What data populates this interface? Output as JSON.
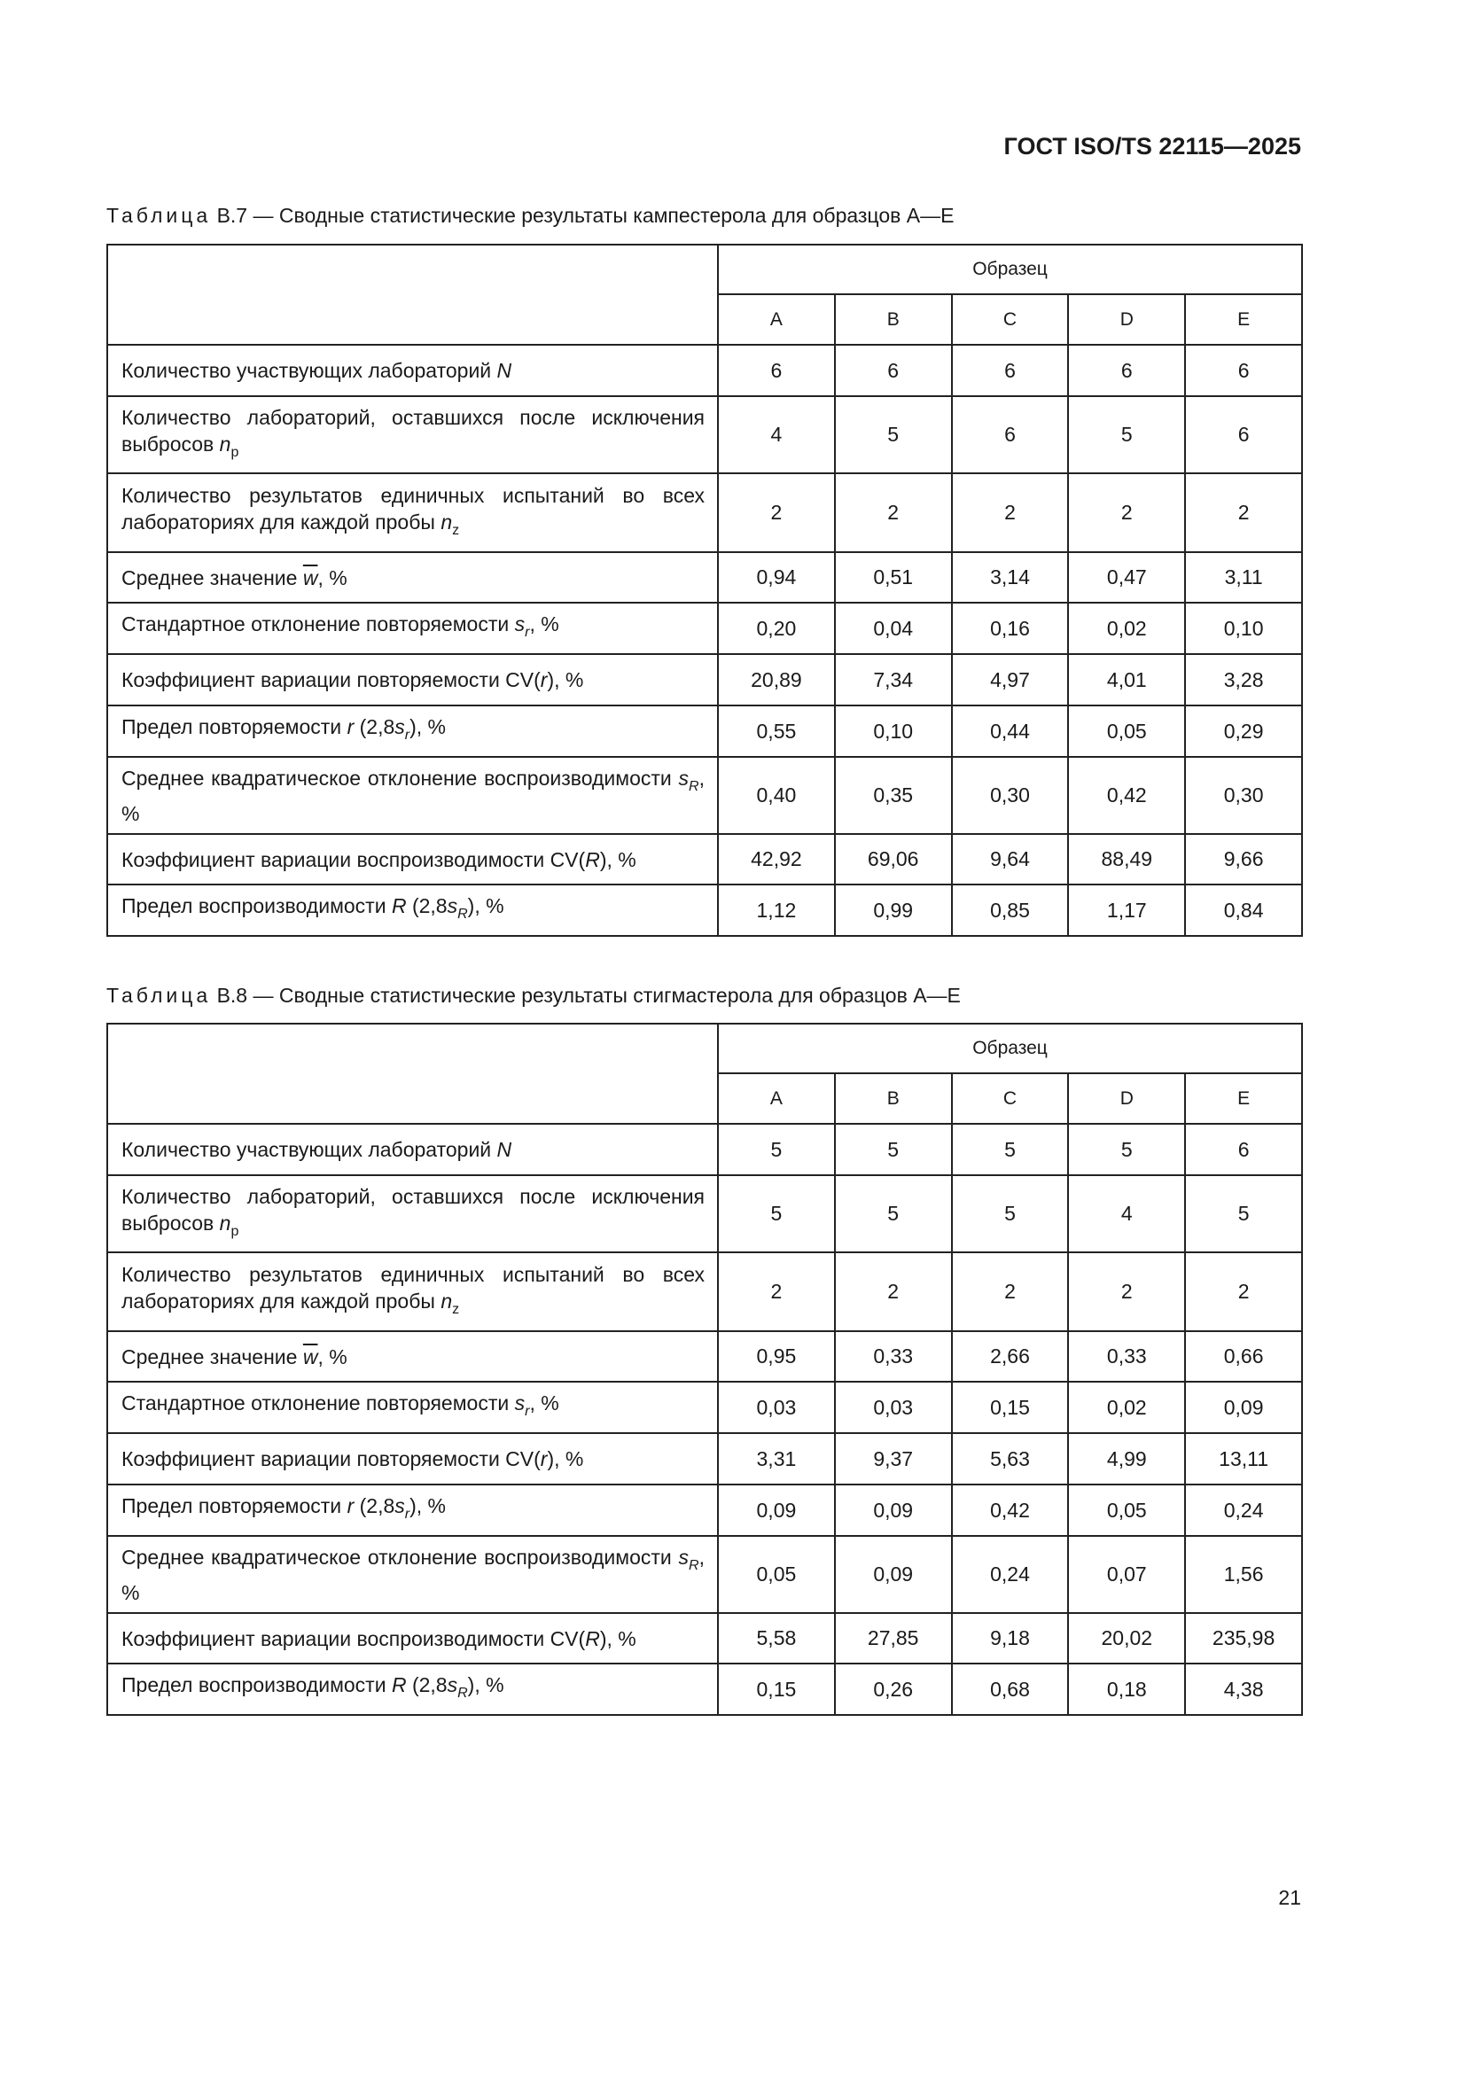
{
  "header": {
    "doc_id": "ГОСТ ISO/TS 22115—2025"
  },
  "tables": [
    {
      "caption_lead": "Таблица",
      "caption_text": " B.7 — Сводные статистические результаты кампестерола для образцов A—E",
      "group_header": "Образец",
      "columns": [
        "A",
        "B",
        "C",
        "D",
        "E"
      ],
      "rows": [
        {
          "label": [
            {
              "t": "Количество участвующих лабораторий "
            },
            {
              "t": "N",
              "s": "i"
            }
          ],
          "values": [
            "6",
            "6",
            "6",
            "6",
            "6"
          ]
        },
        {
          "label": [
            {
              "t": "Количество лабораторий, оставшихся после исключе­ния выбросов "
            },
            {
              "t": "n",
              "s": "i"
            },
            {
              "t": "p",
              "s": "sub"
            }
          ],
          "values": [
            "4",
            "5",
            "6",
            "5",
            "6"
          ]
        },
        {
          "label": [
            {
              "t": "Количество результатов единичных испытаний во всех лабораториях для каждой пробы "
            },
            {
              "t": "n",
              "s": "i"
            },
            {
              "t": "z",
              "s": "sub"
            }
          ],
          "values": [
            "2",
            "2",
            "2",
            "2",
            "2"
          ]
        },
        {
          "label": [
            {
              "t": "Среднее значение "
            },
            {
              "t": "w",
              "s": "over"
            },
            {
              "t": ", %"
            }
          ],
          "values": [
            "0,94",
            "0,51",
            "3,14",
            "0,47",
            "3,11"
          ]
        },
        {
          "label": [
            {
              "t": "Стандартное отклонение повторяемости "
            },
            {
              "t": "s",
              "s": "i"
            },
            {
              "t": "r",
              "s": "isub"
            },
            {
              "t": ", %"
            }
          ],
          "values": [
            "0,20",
            "0,04",
            "0,16",
            "0,02",
            "0,10"
          ]
        },
        {
          "label": [
            {
              "t": "Коэффициент вариации повторяемости CV("
            },
            {
              "t": "r",
              "s": "i"
            },
            {
              "t": "), %"
            }
          ],
          "values": [
            "20,89",
            "7,34",
            "4,97",
            "4,01",
            "3,28"
          ]
        },
        {
          "label": [
            {
              "t": "Предел повторяемости "
            },
            {
              "t": "r",
              "s": "i"
            },
            {
              "t": " (2,8"
            },
            {
              "t": "s",
              "s": "i"
            },
            {
              "t": "r",
              "s": "isub"
            },
            {
              "t": "), %"
            }
          ],
          "values": [
            "0,55",
            "0,10",
            "0,44",
            "0,05",
            "0,29"
          ]
        },
        {
          "label": [
            {
              "t": "Среднее квадратическое отклонение воспроизводи­мости "
            },
            {
              "t": "s",
              "s": "i"
            },
            {
              "t": "R",
              "s": "isub"
            },
            {
              "t": ", %"
            }
          ],
          "values": [
            "0,40",
            "0,35",
            "0,30",
            "0,42",
            "0,30"
          ]
        },
        {
          "label": [
            {
              "t": "Коэффициент вариации воспроизводимости CV("
            },
            {
              "t": "R",
              "s": "i"
            },
            {
              "t": "), %"
            }
          ],
          "values": [
            "42,92",
            "69,06",
            "9,64",
            "88,49",
            "9,66"
          ]
        },
        {
          "label": [
            {
              "t": "Предел воспроизводимости "
            },
            {
              "t": "R",
              "s": "i"
            },
            {
              "t": " (2,8"
            },
            {
              "t": "s",
              "s": "i"
            },
            {
              "t": "R",
              "s": "isub"
            },
            {
              "t": "), %"
            }
          ],
          "values": [
            "1,12",
            "0,99",
            "0,85",
            "1,17",
            "0,84"
          ]
        }
      ]
    },
    {
      "caption_lead": "Таблица",
      "caption_text": " B.8 — Сводные статистические результаты стигмастерола для образцов A—E",
      "group_header": "Образец",
      "columns": [
        "A",
        "B",
        "C",
        "D",
        "E"
      ],
      "rows": [
        {
          "label": [
            {
              "t": "Количество участвующих лабораторий "
            },
            {
              "t": "N",
              "s": "i"
            }
          ],
          "values": [
            "5",
            "5",
            "5",
            "5",
            "6"
          ]
        },
        {
          "label": [
            {
              "t": "Количество лабораторий, оставшихся после исключе­ния выбросов "
            },
            {
              "t": "n",
              "s": "i"
            },
            {
              "t": "p",
              "s": "sub"
            }
          ],
          "values": [
            "5",
            "5",
            "5",
            "4",
            "5"
          ]
        },
        {
          "label": [
            {
              "t": "Количество результатов единичных испытаний во всех лабораториях для каждой пробы "
            },
            {
              "t": "n",
              "s": "i"
            },
            {
              "t": "z",
              "s": "sub"
            }
          ],
          "values": [
            "2",
            "2",
            "2",
            "2",
            "2"
          ]
        },
        {
          "label": [
            {
              "t": "Среднее значение "
            },
            {
              "t": "w",
              "s": "over"
            },
            {
              "t": ", %"
            }
          ],
          "values": [
            "0,95",
            "0,33",
            "2,66",
            "0,33",
            "0,66"
          ]
        },
        {
          "label": [
            {
              "t": "Стандартное отклонение повторяемости "
            },
            {
              "t": "s",
              "s": "i"
            },
            {
              "t": "r",
              "s": "isub"
            },
            {
              "t": ", %"
            }
          ],
          "values": [
            "0,03",
            "0,03",
            "0,15",
            "0,02",
            "0,09"
          ]
        },
        {
          "label": [
            {
              "t": "Коэффициент вариации повторяемости CV("
            },
            {
              "t": "r",
              "s": "i"
            },
            {
              "t": "), %"
            }
          ],
          "values": [
            "3,31",
            "9,37",
            "5,63",
            "4,99",
            "13,11"
          ]
        },
        {
          "label": [
            {
              "t": "Предел повторяемости "
            },
            {
              "t": "r",
              "s": "i"
            },
            {
              "t": " (2,8"
            },
            {
              "t": "s",
              "s": "i"
            },
            {
              "t": "r",
              "s": "isub"
            },
            {
              "t": "), %"
            }
          ],
          "values": [
            "0,09",
            "0,09",
            "0,42",
            "0,05",
            "0,24"
          ]
        },
        {
          "label": [
            {
              "t": "Среднее квадратическое отклонение воспроизводи­мости "
            },
            {
              "t": "s",
              "s": "i"
            },
            {
              "t": "R",
              "s": "isub"
            },
            {
              "t": ", %"
            }
          ],
          "values": [
            "0,05",
            "0,09",
            "0,24",
            "0,07",
            "1,56"
          ]
        },
        {
          "label": [
            {
              "t": "Коэффициент вариации воспроизводимости CV("
            },
            {
              "t": "R",
              "s": "i"
            },
            {
              "t": "), %"
            }
          ],
          "values": [
            "5,58",
            "27,85",
            "9,18",
            "20,02",
            "235,98"
          ]
        },
        {
          "label": [
            {
              "t": "Предел воспроизводимости "
            },
            {
              "t": "R",
              "s": "i"
            },
            {
              "t": " (2,8"
            },
            {
              "t": "s",
              "s": "i"
            },
            {
              "t": "R",
              "s": "isub"
            },
            {
              "t": "), %"
            }
          ],
          "values": [
            "0,15",
            "0,26",
            "0,68",
            "0,18",
            "4,38"
          ]
        }
      ]
    }
  ],
  "footer": {
    "page_number": "21"
  }
}
